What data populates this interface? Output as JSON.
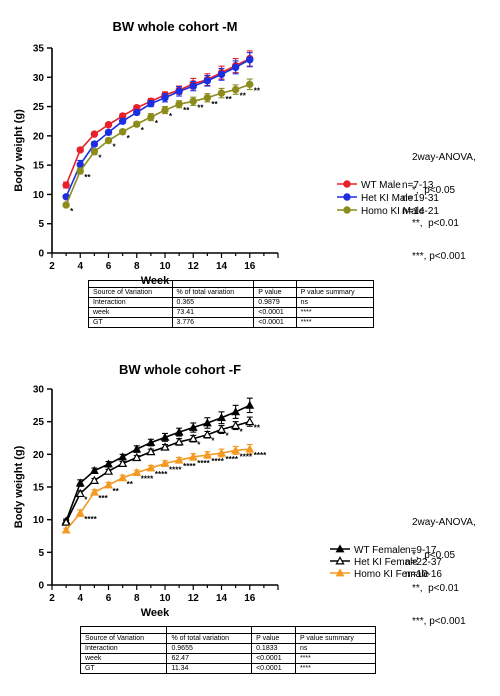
{
  "chart_data": [
    {
      "type": "line",
      "title": "BW whole cohort -M",
      "xlabel": "Week",
      "ylabel": "Body weight (g)",
      "xlim": [
        2,
        18
      ],
      "ylim": [
        0,
        35
      ],
      "xticks": [
        "2",
        "4",
        "6",
        "8",
        "10",
        "12",
        "14",
        "16"
      ],
      "yticks": [
        "0",
        "5",
        "10",
        "15",
        "20",
        "25",
        "30",
        "35"
      ],
      "x": [
        3,
        4,
        5,
        6,
        7,
        8,
        9,
        10,
        11,
        12,
        13,
        14,
        15,
        16
      ],
      "series": [
        {
          "name": "WT Male",
          "n": "n=7-13",
          "color": "#e8202a",
          "marker": "circle",
          "values": [
            11.6,
            17.6,
            20.3,
            21.9,
            23.4,
            24.8,
            25.9,
            27.0,
            27.8,
            28.9,
            29.6,
            30.8,
            32.0,
            33.2
          ],
          "err": [
            0.5,
            0.3,
            0.3,
            0.3,
            0.4,
            0.4,
            0.5,
            0.5,
            0.7,
            0.9,
            1.0,
            1.1,
            1.2,
            1.3
          ]
        },
        {
          "name": "Het KI Male",
          "n": "n=19-31",
          "color": "#1c2fe0",
          "marker": "circle",
          "values": [
            9.6,
            15.1,
            18.6,
            20.6,
            22.5,
            24.0,
            25.5,
            26.5,
            27.6,
            28.5,
            29.4,
            30.5,
            31.7,
            33.0
          ],
          "err": [
            0.3,
            0.7,
            0.4,
            0.4,
            0.4,
            0.4,
            0.5,
            0.7,
            0.8,
            0.8,
            0.9,
            1.0,
            1.1,
            1.2
          ]
        },
        {
          "name": "Homo KI Male",
          "n": "n=14-21",
          "color": "#8c8c1c",
          "marker": "circle",
          "values": [
            8.2,
            14.0,
            17.3,
            19.2,
            20.7,
            22.0,
            23.2,
            24.4,
            25.4,
            25.9,
            26.5,
            27.3,
            27.9,
            28.8
          ],
          "err": [
            0.3,
            0.5,
            0.5,
            0.4,
            0.4,
            0.4,
            0.6,
            0.6,
            0.6,
            0.7,
            0.7,
            0.8,
            0.8,
            0.9
          ]
        }
      ],
      "annotations": [
        {
          "x": 3,
          "y": 8.2,
          "text": "*"
        },
        {
          "x": 4,
          "y": 14.0,
          "text": "**"
        },
        {
          "x": 5,
          "y": 17.3,
          "text": "*"
        },
        {
          "x": 6,
          "y": 19.2,
          "text": "*"
        },
        {
          "x": 7,
          "y": 20.7,
          "text": "*"
        },
        {
          "x": 8,
          "y": 22.0,
          "text": "*"
        },
        {
          "x": 9,
          "y": 23.2,
          "text": "*"
        },
        {
          "x": 10,
          "y": 24.4,
          "text": "*"
        },
        {
          "x": 11,
          "y": 25.4,
          "text": "**"
        },
        {
          "x": 12,
          "y": 25.9,
          "text": "**"
        },
        {
          "x": 13,
          "y": 26.5,
          "text": "**"
        },
        {
          "x": 14,
          "y": 27.3,
          "text": "**"
        },
        {
          "x": 15,
          "y": 27.9,
          "text": "**"
        },
        {
          "x": 16,
          "y": 28.8,
          "text": "**"
        }
      ],
      "anova_note": [
        "2way-ANOVA,",
        "*,  p<0.05",
        "**,  p<0.01",
        "***, p<0.001"
      ],
      "table": {
        "headers": [
          "Source of Variation",
          "% of total variation",
          "P value",
          "P value summary"
        ],
        "rows": [
          [
            "Interaction",
            "0.365",
            "0.9879",
            "ns"
          ],
          [
            "week",
            "73.41",
            "<0.0001",
            "****"
          ],
          [
            "GT",
            "3.776",
            "<0.0001",
            "****"
          ]
        ]
      }
    },
    {
      "type": "line",
      "title": "BW whole cohort -F",
      "xlabel": "Week",
      "ylabel": "Body weight (g)",
      "xlim": [
        2,
        18
      ],
      "ylim": [
        0,
        30
      ],
      "xticks": [
        "2",
        "4",
        "6",
        "8",
        "10",
        "12",
        "14",
        "16"
      ],
      "yticks": [
        "0",
        "5",
        "10",
        "15",
        "20",
        "25",
        "30"
      ],
      "x": [
        3,
        4,
        5,
        6,
        7,
        8,
        9,
        10,
        11,
        12,
        13,
        14,
        15,
        16
      ],
      "series": [
        {
          "name": "WT Female",
          "n": "n=9-17",
          "color": "#000000",
          "marker": "triangle-filled",
          "values": [
            9.8,
            15.6,
            17.5,
            18.5,
            19.6,
            20.8,
            21.8,
            22.6,
            23.4,
            24.1,
            24.8,
            25.6,
            26.5,
            27.5
          ],
          "err": [
            0.3,
            0.5,
            0.4,
            0.4,
            0.4,
            0.5,
            0.5,
            0.6,
            0.6,
            0.7,
            0.8,
            0.9,
            1.0,
            1.1
          ]
        },
        {
          "name": "Het KI Female",
          "n": "n=22-37",
          "color": "#000000",
          "marker": "triangle-open",
          "values": [
            9.6,
            14.0,
            16.0,
            17.4,
            18.6,
            19.5,
            20.4,
            21.1,
            21.9,
            22.4,
            23.0,
            23.8,
            24.4,
            25.0
          ],
          "err": [
            0.3,
            0.4,
            0.3,
            0.3,
            0.3,
            0.3,
            0.4,
            0.4,
            0.5,
            0.5,
            0.5,
            0.6,
            0.6,
            0.7
          ]
        },
        {
          "name": "Homo KI Female",
          "n": "n=10-16",
          "color": "#f39a23",
          "marker": "triangle-filled",
          "values": [
            8.4,
            11.0,
            14.2,
            15.3,
            16.4,
            17.2,
            17.9,
            18.6,
            19.1,
            19.6,
            19.9,
            20.2,
            20.6,
            20.8
          ],
          "err": [
            0.3,
            0.5,
            0.4,
            0.4,
            0.4,
            0.4,
            0.4,
            0.4,
            0.4,
            0.5,
            0.5,
            0.6,
            0.6,
            0.7
          ]
        }
      ],
      "annotations": [
        {
          "x": 4,
          "y": 14.0,
          "text": "*"
        },
        {
          "x": 4,
          "y": 11.0,
          "text": "****"
        },
        {
          "x": 5,
          "y": 14.2,
          "text": "***"
        },
        {
          "x": 6,
          "y": 15.3,
          "text": "**"
        },
        {
          "x": 7,
          "y": 16.4,
          "text": "**"
        },
        {
          "x": 8,
          "y": 17.2,
          "text": "****"
        },
        {
          "x": 9,
          "y": 17.9,
          "text": "****"
        },
        {
          "x": 10,
          "y": 18.6,
          "text": "****"
        },
        {
          "x": 11,
          "y": 19.1,
          "text": "****"
        },
        {
          "x": 12,
          "y": 19.6,
          "text": "****"
        },
        {
          "x": 13,
          "y": 19.9,
          "text": "****"
        },
        {
          "x": 14,
          "y": 20.2,
          "text": "****"
        },
        {
          "x": 15,
          "y": 20.6,
          "text": "****"
        },
        {
          "x": 16,
          "y": 20.8,
          "text": "****"
        },
        {
          "x": 12,
          "y": 22.4,
          "text": "*"
        },
        {
          "x": 13,
          "y": 23.0,
          "text": "*"
        },
        {
          "x": 14,
          "y": 23.8,
          "text": "*"
        },
        {
          "x": 15,
          "y": 24.4,
          "text": "*"
        },
        {
          "x": 16,
          "y": 25.0,
          "text": "**"
        }
      ],
      "anova_note": [
        "2way-ANOVA,",
        "*,  p<0.05",
        "**,  p<0.01",
        "***, p<0.001"
      ],
      "table": {
        "headers": [
          "Source of Variation",
          "% of total variation",
          "P value",
          "P value summary"
        ],
        "rows": [
          [
            "Interaction",
            "0.9655",
            "0.1833",
            "ns"
          ],
          [
            "week",
            "62.47",
            "<0.0001",
            "****"
          ],
          [
            "GT",
            "11.34",
            "<0.0001",
            "****"
          ]
        ]
      }
    }
  ]
}
